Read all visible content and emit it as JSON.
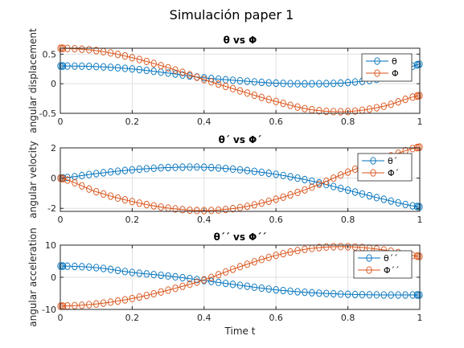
{
  "figure_title": "Simulación paper 1",
  "colors": {
    "series1": "#0072BD",
    "series2": "#D95319",
    "grid": "#DFDFDF",
    "axis": "#262626"
  },
  "chart_data": [
    {
      "type": "line",
      "title": "θ vs Φ",
      "xlabel": "",
      "ylabel": "angular displacement",
      "xlim": [
        0,
        1
      ],
      "ylim": [
        -0.5,
        0.6
      ],
      "xticks": [
        "0",
        "0.2",
        "0.4",
        "0.6",
        "0.8",
        "1"
      ],
      "yticks": [
        {
          "v": 0.5,
          "t": "0.5"
        },
        {
          "v": 0,
          "t": "0"
        },
        {
          "v": -0.5,
          "t": "-0.5"
        }
      ],
      "legend_position": "top-right",
      "grid": true,
      "x": [
        0,
        0.1,
        0.2,
        0.3,
        0.4,
        0.5,
        0.6,
        0.7,
        0.8,
        0.9,
        1.0
      ],
      "series": [
        {
          "name": "θ",
          "values": [
            0.3,
            0.29,
            0.25,
            0.18,
            0.1,
            0.05,
            0.01,
            0.0,
            0.02,
            0.1,
            0.33
          ]
        },
        {
          "name": "Φ",
          "values": [
            0.6,
            0.56,
            0.44,
            0.27,
            0.07,
            -0.12,
            -0.3,
            -0.44,
            -0.47,
            -0.38,
            -0.2
          ]
        }
      ]
    },
    {
      "type": "line",
      "title": "θ´ vs Φ´",
      "xlabel": "",
      "ylabel": "angular velocity",
      "xlim": [
        0,
        1
      ],
      "ylim": [
        -2.2,
        2.0
      ],
      "xticks": [
        "0",
        "0.2",
        "0.4",
        "0.6",
        "0.8",
        "1"
      ],
      "yticks": [
        {
          "v": 2,
          "t": "2"
        },
        {
          "v": 0,
          "t": "0"
        },
        {
          "v": -2,
          "t": "-2"
        }
      ],
      "legend_position": "top-right",
      "grid": true,
      "x": [
        0,
        0.1,
        0.2,
        0.3,
        0.4,
        0.5,
        0.6,
        0.7,
        0.8,
        0.9,
        1.0
      ],
      "series": [
        {
          "name": "θ´",
          "values": [
            0.0,
            0.3,
            0.55,
            0.7,
            0.72,
            0.55,
            0.25,
            -0.2,
            -0.8,
            -1.4,
            -1.9
          ]
        },
        {
          "name": "Φ´",
          "values": [
            0.0,
            -0.9,
            -1.55,
            -1.98,
            -2.15,
            -1.95,
            -1.4,
            -0.6,
            0.4,
            1.3,
            2.05
          ]
        }
      ]
    },
    {
      "type": "line",
      "title": "θ´´ vs Φ´´",
      "xlabel": "Time t",
      "ylabel": "angular acceleration",
      "xlim": [
        0,
        1
      ],
      "ylim": [
        -10,
        10
      ],
      "xticks": [
        "0",
        "0.2",
        "0.4",
        "0.6",
        "0.8",
        "1"
      ],
      "yticks": [
        {
          "v": 10,
          "t": "10"
        },
        {
          "v": 0,
          "t": "0"
        },
        {
          "v": -10,
          "t": "-10"
        }
      ],
      "legend_position": "top-right",
      "grid": true,
      "x": [
        0,
        0.1,
        0.2,
        0.3,
        0.4,
        0.5,
        0.6,
        0.7,
        0.8,
        0.9,
        1.0
      ],
      "series": [
        {
          "name": "θ´´",
          "values": [
            3.5,
            3.0,
            1.5,
            0.4,
            -1.0,
            -2.5,
            -3.9,
            -4.8,
            -5.3,
            -5.5,
            -5.5
          ]
        },
        {
          "name": "Φ´´",
          "values": [
            -9.0,
            -8.3,
            -6.6,
            -4.0,
            -0.8,
            3.3,
            6.8,
            9.0,
            9.5,
            8.5,
            6.5
          ]
        }
      ]
    }
  ]
}
